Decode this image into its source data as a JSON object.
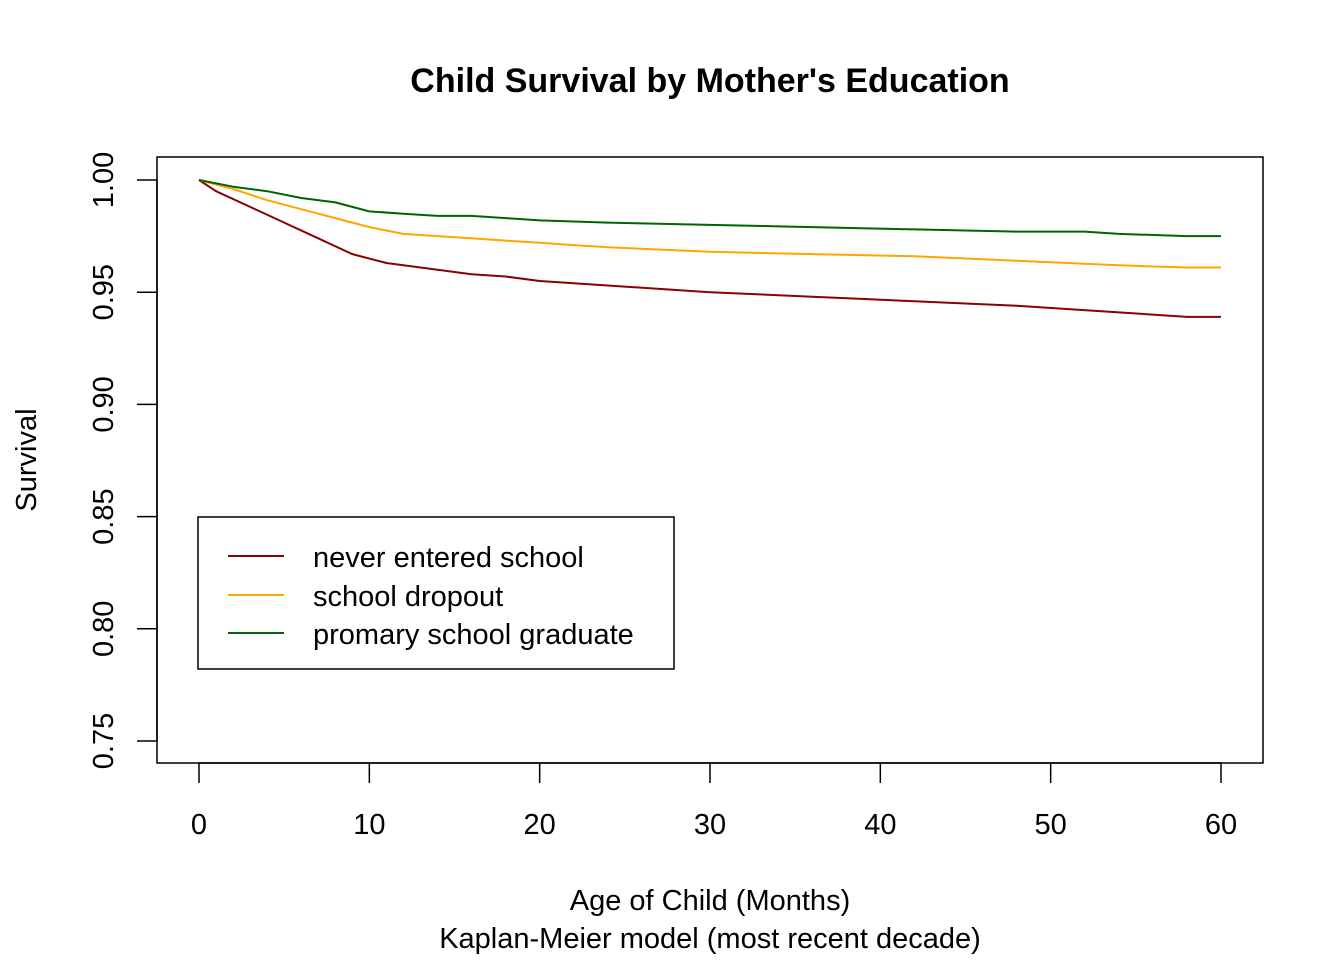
{
  "chart_data": {
    "type": "line",
    "title": "Child Survival by Mother's Education",
    "xlabel": "Age of Child (Months)",
    "subtitle": "Kaplan-Meier model (most recent decade)",
    "ylabel": "Survival",
    "xlim": [
      0,
      60
    ],
    "ylim": [
      0.75,
      1.0
    ],
    "xticks": [
      "0",
      "10",
      "20",
      "30",
      "40",
      "50",
      "60"
    ],
    "yticks": [
      "0.75",
      "0.80",
      "0.85",
      "0.90",
      "0.95",
      "1.00"
    ],
    "grid": false,
    "legend_position": "bottom-left",
    "series": [
      {
        "name": "never entered school",
        "color": "#8B0000",
        "x": [
          0,
          1,
          3,
          5,
          7,
          9,
          11,
          12,
          14,
          16,
          18,
          20,
          22,
          24,
          30,
          36,
          42,
          48,
          54,
          56,
          58,
          60
        ],
        "y": [
          1.0,
          0.995,
          0.988,
          0.981,
          0.974,
          0.967,
          0.963,
          0.962,
          0.96,
          0.958,
          0.957,
          0.955,
          0.954,
          0.953,
          0.95,
          0.948,
          0.946,
          0.944,
          0.941,
          0.94,
          0.939,
          0.939
        ]
      },
      {
        "name": "school dropout",
        "color": "#FFA500",
        "x": [
          0,
          2,
          4,
          6,
          8,
          10,
          12,
          14,
          16,
          18,
          20,
          22,
          24,
          30,
          36,
          42,
          48,
          54,
          58,
          60
        ],
        "y": [
          1.0,
          0.996,
          0.991,
          0.987,
          0.983,
          0.979,
          0.976,
          0.975,
          0.974,
          0.973,
          0.972,
          0.971,
          0.97,
          0.968,
          0.967,
          0.966,
          0.964,
          0.962,
          0.961,
          0.961
        ]
      },
      {
        "name": "promary school graduate",
        "color": "#006400",
        "x": [
          0,
          2,
          4,
          6,
          8,
          10,
          12,
          14,
          16,
          18,
          20,
          24,
          30,
          36,
          42,
          48,
          52,
          54,
          58,
          60
        ],
        "y": [
          1.0,
          0.997,
          0.995,
          0.992,
          0.99,
          0.986,
          0.985,
          0.984,
          0.984,
          0.983,
          0.982,
          0.981,
          0.98,
          0.979,
          0.978,
          0.977,
          0.977,
          0.976,
          0.975,
          0.975
        ]
      }
    ]
  }
}
